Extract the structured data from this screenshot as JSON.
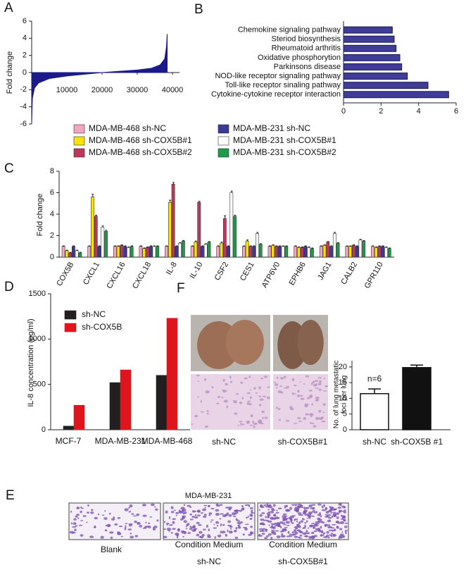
{
  "chart_data": [
    {
      "type": "area",
      "label": "A",
      "ylabel": "Fold change",
      "x": [
        0,
        200,
        800,
        2000,
        5000,
        10000,
        15000,
        20000,
        25000,
        30000,
        34000,
        36500,
        37800,
        38300,
        38500
      ],
      "values": [
        -6,
        -3,
        -1.8,
        -1.2,
        -0.7,
        -0.4,
        -0.2,
        0,
        0.15,
        0.3,
        0.5,
        0.9,
        1.6,
        3,
        4.5
      ],
      "color": "#1c1a8a",
      "xlim": [
        0,
        42000
      ],
      "xticks": [
        10000,
        20000,
        30000,
        40000
      ],
      "ylim": [
        -6,
        6
      ],
      "yticks": [
        -6,
        -4,
        -2,
        0,
        2,
        4,
        6
      ]
    },
    {
      "type": "hbar",
      "label": "B",
      "categories": [
        "Chemokine signaling pathway",
        "Steriod biosynthesis",
        "Rheumatoid arthritis",
        "Oxidative phosphorytion",
        "Parkinsons disease",
        "NOD-like receptor signaling pathway",
        "Toll-like receptor sinaling pathway",
        "Cytokine-cytokine receptor interaction"
      ],
      "values": [
        2.6,
        2.7,
        2.8,
        3.0,
        3.1,
        3.4,
        4.5,
        5.6
      ],
      "color": "#3f3d99",
      "xlim": [
        0,
        6
      ],
      "xticks": [
        0,
        2,
        4,
        6
      ]
    },
    {
      "type": "grouped-bar",
      "label": "C",
      "ylabel": "Fold change",
      "categories": [
        "COX5B",
        "CXCL1",
        "CXCL16",
        "CXCL18",
        "IL-8",
        "IL-10",
        "CSF2",
        "CES1",
        "ATP6V0",
        "EPHB6",
        "JAG1",
        "CALB2",
        "GPR110"
      ],
      "series": [
        {
          "name": "MDA-MB-468 sh-NC",
          "color": "#f4a6c0",
          "values": [
            1,
            1,
            1,
            1,
            1,
            1,
            1,
            1,
            1,
            1,
            1,
            1,
            1
          ],
          "errors": [
            0.05,
            0.05,
            0.05,
            0.05,
            0.05,
            0.05,
            0.05,
            0.05,
            0.05,
            0.05,
            0.05,
            0.05,
            0.05
          ]
        },
        {
          "name": "MDA-MB-468 sh-COX5B#1",
          "color": "#f5e400",
          "values": [
            0.6,
            5.6,
            1,
            0.8,
            5.1,
            1.4,
            1.3,
            1.5,
            1.1,
            0.9,
            1.1,
            1,
            0.9
          ],
          "errors": [
            0.05,
            0.25,
            0.05,
            0.05,
            0.2,
            0.1,
            0.1,
            0.1,
            0.05,
            0.05,
            0.05,
            0.05,
            0.05
          ]
        },
        {
          "name": "MDA-MB-468 sh-COX5B#2",
          "color": "#c0365a",
          "values": [
            0.4,
            3.8,
            1.1,
            0.9,
            6.8,
            5.1,
            3.6,
            1,
            1,
            0.9,
            1.4,
            1.1,
            1
          ],
          "errors": [
            0.05,
            0.1,
            0.05,
            0.05,
            0.15,
            0.1,
            0.25,
            0.05,
            0.05,
            0.05,
            0.05,
            0.05,
            0.05
          ]
        },
        {
          "name": "MDA-MB-231 sh-NC",
          "color": "#3b3896",
          "values": [
            1,
            1,
            1,
            1,
            1,
            1,
            1,
            1,
            1,
            1,
            1,
            1,
            1
          ],
          "errors": [
            0.05,
            0.05,
            0.05,
            0.05,
            0.05,
            0.05,
            0.05,
            0.05,
            0.05,
            0.05,
            0.05,
            0.05,
            0.05
          ]
        },
        {
          "name": "MDA-MB-231 sh-COX5B#1",
          "color": "#ffffff",
          "values": [
            0.6,
            2.8,
            0.9,
            1,
            1.3,
            1.2,
            6,
            2.2,
            1,
            0.9,
            2.2,
            1.6,
            0.9
          ],
          "errors": [
            0.05,
            0.1,
            0.05,
            0.05,
            0.05,
            0.05,
            0.15,
            0.1,
            0.05,
            0.05,
            0.1,
            0.05,
            0.05
          ]
        },
        {
          "name": "MDA-MB-231 sh-COX5B#2",
          "color": "#1f9a4a",
          "values": [
            0.4,
            2.4,
            1,
            1,
            1.5,
            1.4,
            3.8,
            1.2,
            1,
            0.8,
            1.3,
            1.5,
            0.8
          ],
          "errors": [
            0.05,
            0.1,
            0.05,
            0.05,
            0.05,
            0.05,
            0.1,
            0.05,
            0.05,
            0.05,
            0.05,
            0.05,
            0.05
          ]
        }
      ],
      "ylim": [
        0,
        8
      ],
      "yticks": [
        0,
        2,
        4,
        6,
        8
      ]
    },
    {
      "type": "grouped-bar",
      "label": "D",
      "ylabel": "IL-8 concentration (pg/ml)",
      "categories": [
        "MCF-7",
        "MDA-MB-231",
        "MDA-MB-468"
      ],
      "series": [
        {
          "name": "sh-NC",
          "color": "#231f20",
          "values": [
            40,
            520,
            600
          ]
        },
        {
          "name": "sh-COX5B",
          "color": "#e0141c",
          "values": [
            270,
            660,
            1230
          ]
        }
      ],
      "ylim": [
        0,
        1500
      ],
      "yticks": [
        0,
        500,
        1000,
        1500
      ]
    },
    {
      "type": "bar",
      "label": "F",
      "ylabel": [
        "No. of lung metastatic",
        "foci per lung"
      ],
      "categories": [
        "sh-NC",
        "sh-COX5B #1"
      ],
      "values": [
        11.5,
        19.8
      ],
      "errors": [
        1.5,
        0.8
      ],
      "colors": [
        "#ffffff",
        "#111111"
      ],
      "annotation": "n=6",
      "ylim": [
        0,
        22
      ],
      "yticks": [
        0,
        5,
        10,
        15,
        20
      ]
    }
  ],
  "figure_panels": {
    "F": {
      "captions": [
        "sh-NC",
        "sh-COX5B#1"
      ]
    },
    "E": {
      "label": "E",
      "title": "MDA-MB-231",
      "captions": [
        [
          "Blank"
        ],
        [
          "Condition Medium",
          "sh-NC"
        ],
        [
          "Condition Medium",
          "sh-COX5B#1"
        ]
      ]
    }
  }
}
